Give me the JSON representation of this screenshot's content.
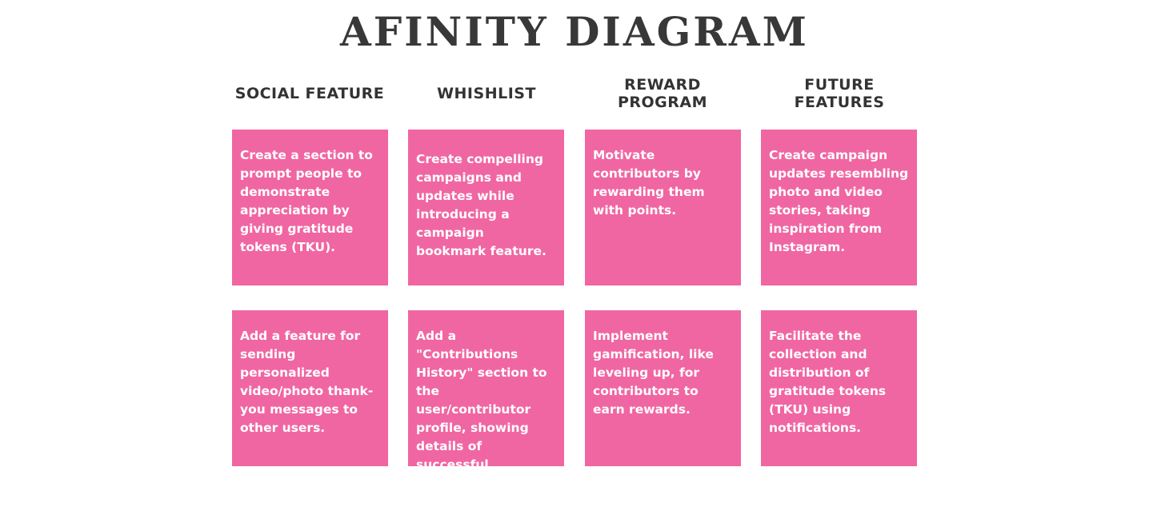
{
  "title": "AFINITY DIAGRAM",
  "columns": [
    {
      "header": "SOCIAL FEATURE",
      "notes": [
        "Create a section to prompt people to demonstrate appreciation by giving gratitude tokens (TKU).",
        "Add a feature for sending personalized video/photo thank-you messages to other users."
      ]
    },
    {
      "header": "WHISHLIST",
      "notes": [
        "Create compelling campaigns and updates while introducing a campaign bookmark feature.",
        "Add a \"Contributions History\" section to the user/contributor profile, showing details of successful campaign contributions."
      ]
    },
    {
      "header": "REWARD PROGRAM",
      "notes": [
        "Motivate contributors by rewarding them with points.",
        "Implement gamification, like leveling up, for contributors to earn rewards."
      ]
    },
    {
      "header": "FUTURE FEATURES",
      "notes": [
        "Create campaign updates resembling photo and video stories, taking inspiration from Instagram.",
        "Facilitate the collection and distribution of gratitude tokens (TKU) using notifications."
      ]
    }
  ],
  "colors": {
    "note_background": "#f066a2",
    "note_text": "#ffffff",
    "heading_text": "#383838"
  }
}
